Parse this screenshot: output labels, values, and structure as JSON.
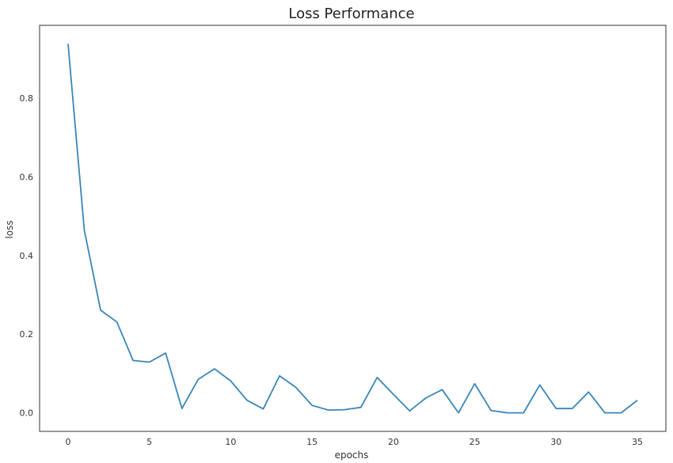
{
  "chart_data": {
    "type": "line",
    "title": "Loss Performance",
    "xlabel": "epochs",
    "ylabel": "loss",
    "xlim": [
      -1.75,
      36.75
    ],
    "ylim": [
      -0.047,
      0.985
    ],
    "xticks": [
      0,
      5,
      10,
      15,
      20,
      25,
      30,
      35
    ],
    "yticks": [
      0.0,
      0.2,
      0.4,
      0.6,
      0.8
    ],
    "grid": false,
    "line_color": "#3a86b8",
    "series": [
      {
        "x": [
          0,
          1,
          2,
          3,
          4,
          5,
          6,
          7,
          8,
          9,
          10,
          11,
          12,
          13,
          14,
          15,
          16,
          17,
          18,
          19,
          20,
          21,
          22,
          23,
          24,
          25,
          26,
          27,
          28,
          29,
          30,
          31,
          32,
          33,
          34,
          35
        ],
        "values": [
          0.938,
          0.464,
          0.261,
          0.231,
          0.133,
          0.129,
          0.152,
          0.011,
          0.085,
          0.112,
          0.081,
          0.032,
          0.01,
          0.094,
          0.065,
          0.019,
          0.007,
          0.008,
          0.014,
          0.09,
          0.047,
          0.005,
          0.038,
          0.059,
          0.0,
          0.074,
          0.006,
          0.0,
          0.0,
          0.071,
          0.011,
          0.011,
          0.053,
          0.0,
          0.0,
          0.032
        ]
      }
    ]
  }
}
